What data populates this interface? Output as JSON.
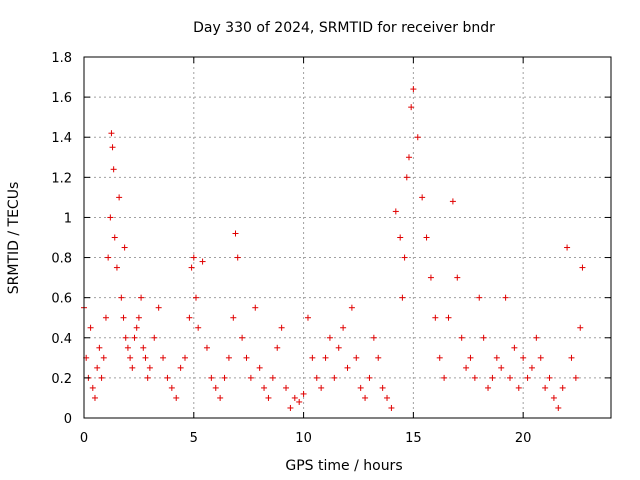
{
  "chart_data": {
    "type": "scatter",
    "title": "Day 330 of 2024, SRMTID for receiver bndr",
    "xlabel": "GPS time / hours",
    "ylabel": "SRMTID / TECUs",
    "xlim": [
      0,
      24
    ],
    "ylim": [
      0,
      1.8
    ],
    "x_ticks": [
      0,
      5,
      10,
      15,
      20
    ],
    "x_tick_labels": [
      "0",
      "5",
      "10",
      "15",
      "20"
    ],
    "y_ticks": [
      0,
      0.2,
      0.4,
      0.6,
      0.8,
      1.0,
      1.2,
      1.4,
      1.6,
      1.8
    ],
    "y_tick_labels": [
      "0",
      "0.2",
      "0.4",
      "0.6",
      "0.8",
      "1",
      "1.2",
      "1.4",
      "1.6",
      "1.8"
    ],
    "grid": true,
    "marker": "plus",
    "color": "#e00000",
    "series": [
      {
        "name": "SRMTID",
        "x": [
          0.0,
          0.1,
          0.2,
          0.3,
          0.4,
          0.5,
          0.6,
          0.7,
          0.8,
          0.9,
          1.0,
          1.1,
          1.2,
          1.25,
          1.3,
          1.35,
          1.4,
          1.5,
          1.6,
          1.7,
          1.8,
          1.85,
          1.9,
          2.0,
          2.1,
          2.2,
          2.3,
          2.4,
          2.5,
          2.6,
          2.7,
          2.8,
          2.9,
          3.0,
          3.2,
          3.4,
          3.6,
          3.8,
          4.0,
          4.2,
          4.4,
          4.6,
          4.8,
          4.9,
          5.0,
          5.1,
          5.2,
          5.4,
          5.6,
          5.8,
          6.0,
          6.2,
          6.4,
          6.6,
          6.8,
          6.9,
          7.0,
          7.2,
          7.4,
          7.6,
          7.8,
          8.0,
          8.2,
          8.4,
          8.6,
          8.8,
          9.0,
          9.2,
          9.4,
          9.6,
          9.8,
          10.0,
          10.2,
          10.4,
          10.6,
          10.8,
          11.0,
          11.2,
          11.4,
          11.6,
          11.8,
          12.0,
          12.2,
          12.4,
          12.6,
          12.8,
          13.0,
          13.2,
          13.4,
          13.6,
          13.8,
          14.0,
          14.2,
          14.4,
          14.5,
          14.6,
          14.7,
          14.8,
          14.9,
          15.0,
          15.2,
          15.4,
          15.6,
          15.8,
          16.0,
          16.2,
          16.4,
          16.6,
          16.8,
          17.0,
          17.2,
          17.4,
          17.6,
          17.8,
          18.0,
          18.2,
          18.4,
          18.6,
          18.8,
          19.0,
          19.2,
          19.4,
          19.6,
          19.8,
          20.0,
          20.2,
          20.4,
          20.6,
          20.8,
          21.0,
          21.2,
          21.4,
          21.6,
          21.8,
          22.0,
          22.2,
          22.4,
          22.6,
          22.7
        ],
        "y": [
          0.55,
          0.3,
          0.2,
          0.45,
          0.15,
          0.1,
          0.25,
          0.35,
          0.2,
          0.3,
          0.5,
          0.8,
          1.0,
          1.42,
          1.35,
          1.24,
          0.9,
          0.75,
          1.1,
          0.6,
          0.5,
          0.85,
          0.4,
          0.35,
          0.3,
          0.25,
          0.4,
          0.45,
          0.5,
          0.6,
          0.35,
          0.3,
          0.2,
          0.25,
          0.4,
          0.55,
          0.3,
          0.2,
          0.15,
          0.1,
          0.25,
          0.3,
          0.5,
          0.75,
          0.8,
          0.6,
          0.45,
          0.78,
          0.35,
          0.2,
          0.15,
          0.1,
          0.2,
          0.3,
          0.5,
          0.92,
          0.8,
          0.4,
          0.3,
          0.2,
          0.55,
          0.25,
          0.15,
          0.1,
          0.2,
          0.35,
          0.45,
          0.15,
          0.05,
          0.1,
          0.08,
          0.12,
          0.5,
          0.3,
          0.2,
          0.15,
          0.3,
          0.4,
          0.2,
          0.35,
          0.45,
          0.25,
          0.55,
          0.3,
          0.15,
          0.1,
          0.2,
          0.4,
          0.3,
          0.15,
          0.1,
          0.05,
          1.03,
          0.9,
          0.6,
          0.8,
          1.2,
          1.3,
          1.55,
          1.64,
          1.4,
          1.1,
          0.9,
          0.7,
          0.5,
          0.3,
          0.2,
          0.5,
          1.08,
          0.7,
          0.4,
          0.25,
          0.3,
          0.2,
          0.6,
          0.4,
          0.15,
          0.2,
          0.3,
          0.25,
          0.6,
          0.2,
          0.35,
          0.15,
          0.3,
          0.2,
          0.25,
          0.4,
          0.3,
          0.15,
          0.2,
          0.1,
          0.05,
          0.15,
          0.85,
          0.3,
          0.2,
          0.45,
          0.75
        ]
      }
    ]
  }
}
